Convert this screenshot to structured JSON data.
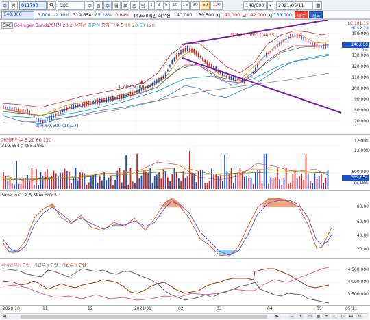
{
  "toolbar": {
    "menu_label": "주",
    "mode_label": "전",
    "stock_code": "011790",
    "search_icon": "search-icon",
    "stock_name": "SKC",
    "period_buttons": [
      "주",
      "일",
      "주",
      "월",
      "분",
      "초",
      "틱"
    ],
    "tick_buttons": [
      "1",
      "3",
      "5",
      "10",
      "15",
      "30",
      "60",
      "120"
    ],
    "counter": "148/600",
    "date": "2021/05/11",
    "buy_label": "매수",
    "sell_label": "매도"
  },
  "quote": {
    "price": "140,000",
    "change": "3,000",
    "change_pct": "-2.10%",
    "volume": "319,654",
    "vol_ratio": "85.18%",
    "turnover_ratio": "0.84%",
    "amount": "44,638백만 회우선",
    "open": "140,000",
    "high": "139,500",
    "high_label": "시",
    "low": "141,000",
    "low_label": "고",
    "close": "142,000",
    "close_label": "저",
    "last": "138,000"
  },
  "price_pane": {
    "legend_ticker": "SKC",
    "legend_items": [
      {
        "text": "Bollinger Bands중심선 20,2",
        "color": "#e0148c"
      },
      {
        "text": "상한선",
        "color": "#d42424"
      },
      {
        "text": "하한선",
        "color": "#2c7cd0"
      },
      {
        "text": "종가 단순 5",
        "color": "#d42424"
      },
      {
        "text": "10",
        "color": "#f08c00"
      },
      {
        "text": "20",
        "color": "#2ca02c"
      },
      {
        "text": "60",
        "color": "#00a2c8"
      },
      {
        "text": "120",
        "color": "#888888"
      }
    ],
    "hi_label": "최고 151,000 (04/15)",
    "lo_label": "최저 69,600 (10/27)",
    "fall_label": "↓ 하락(9,000.0)",
    "right_hi": "LC:101.15",
    "right_hi2": "HC:-2.28",
    "price_box": "140,000",
    "price_box2": "-2.10%",
    "yticks": [
      "150,000",
      "140,000",
      "130,000",
      "120,000",
      "110,000",
      "100,000",
      "90,000",
      "80,000",
      "70,000"
    ]
  },
  "volume_pane": {
    "legend": "거래량 단순 5 20 60 120",
    "legend2": "319,654주 (85.18%)",
    "yticks": [
      "1,500K",
      "1,000K",
      "500,000",
      "319,654",
      "85.18%"
    ]
  },
  "stoch_pane": {
    "legend": "Slow %K 12,5  Slow %D 5",
    "yticks": [
      "80.00",
      "60.00",
      "40.00",
      "20.00"
    ]
  },
  "flow_pane": {
    "legend_items": [
      {
        "text": "외국인보유수량",
        "color": "#e8629a"
      },
      {
        "text": "기관보유수량",
        "color": "#666666"
      },
      {
        "text": "개인보유수량",
        "color": "#a0380a"
      }
    ],
    "yticks": [
      "4,500,000",
      "4,000,000",
      "3,500,000"
    ]
  },
  "xaxis": {
    "ticks": [
      "2020/10",
      "11",
      "12",
      "2021/01",
      "02",
      "03",
      "04",
      "05",
      "05/11"
    ]
  },
  "colors": {
    "up": "#d42424",
    "down": "#1e50c8",
    "trendline": "#7a1aa6",
    "bb_mid": "#e0148c"
  }
}
